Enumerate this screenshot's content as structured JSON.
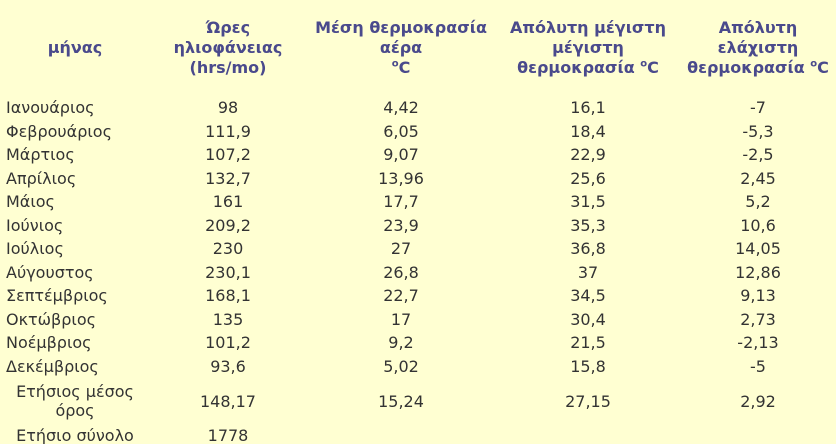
{
  "table": {
    "headers": [
      "μήνας",
      "Ώρες ηλιοφάνειας (hrs/mo)",
      "Μέση θερμοκρασία αέρα",
      "Απόλυτη μέγιστη μέγιστη θερμοκρασία",
      "Απόλυτη ελάχιστη θερμοκρασία"
    ],
    "unit_sup": "o",
    "unit_c": "C",
    "rows": [
      [
        "Ιανουάριος",
        "98",
        "4,42",
        "16,1",
        "-7"
      ],
      [
        "Φεβρουάριος",
        "111,9",
        "6,05",
        "18,4",
        "-5,3"
      ],
      [
        "Μάρτιος",
        "107,2",
        "9,07",
        "22,9",
        "-2,5"
      ],
      [
        "Απρίλιος",
        "132,7",
        "13,96",
        "25,6",
        "2,45"
      ],
      [
        "Μάιος",
        "161",
        "17,7",
        "31,5",
        "5,2"
      ],
      [
        "Ιούνιος",
        "209,2",
        "23,9",
        "35,3",
        "10,6"
      ],
      [
        "Ιούλιος",
        "230",
        "27",
        "36,8",
        "14,05"
      ],
      [
        "Αύγουστος",
        "230,1",
        "26,8",
        "37",
        "12,86"
      ],
      [
        "Σεπτέμβριος",
        "168,1",
        "22,7",
        "34,5",
        "9,13"
      ],
      [
        "Οκτώβριος",
        "135",
        "17",
        "30,4",
        "2,73"
      ],
      [
        "Νοέμβριος",
        "101,2",
        "9,2",
        "21,5",
        "-2,13"
      ],
      [
        "Δεκέμβριος",
        "93,6",
        "5,02",
        "15,8",
        "-5"
      ]
    ],
    "annual_mean": [
      "Ετήσιος μέσος όρος",
      "148,17",
      "15,24",
      "27,15",
      "2,92"
    ],
    "annual_total": [
      "Ετήσιο σύνολο",
      "1778",
      "",
      "",
      ""
    ]
  }
}
